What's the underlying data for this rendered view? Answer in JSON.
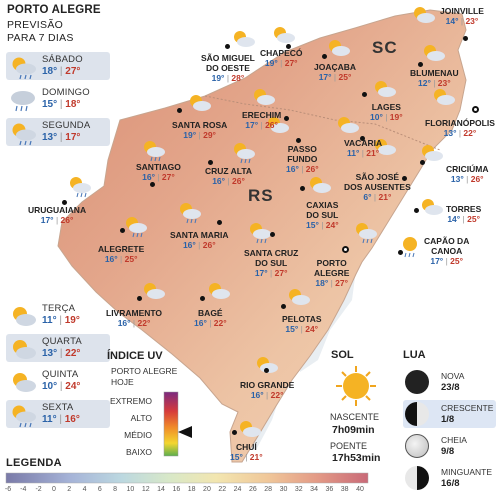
{
  "header": {
    "title": "PORTO ALEGRE",
    "line2": "PREVISÃO",
    "line3": "PARA 7 DIAS"
  },
  "forecast": [
    {
      "day": "SÁBADO",
      "min": "18°",
      "max": "27°",
      "icon": "sun-cloud-rain-icon"
    },
    {
      "day": "DOMINGO",
      "min": "15°",
      "max": "18°",
      "icon": "cloud-rain-icon"
    },
    {
      "day": "SEGUNDA",
      "min": "13°",
      "max": "17°",
      "icon": "sun-cloud-rain-icon"
    },
    {
      "day": "TERÇA",
      "min": "11°",
      "max": "19°",
      "icon": "sun-cloud-icon"
    },
    {
      "day": "QUARTA",
      "min": "13°",
      "max": "22°",
      "icon": "sun-cloud-icon"
    },
    {
      "day": "QUINTA",
      "min": "10°",
      "max": "24°",
      "icon": "sun-cloud-icon"
    },
    {
      "day": "SEXTA",
      "min": "11°",
      "max": "16°",
      "icon": "sun-cloud-rain-icon"
    }
  ],
  "states": {
    "sc": "SC",
    "rs": "RS"
  },
  "cities": {
    "joinville": {
      "name": "JOINVILLE",
      "min": "14°",
      "max": "23°"
    },
    "sao_miguel": {
      "name1": "SÃO MIGUEL",
      "name2": "DO OESTE",
      "min": "19°",
      "max": "28°"
    },
    "chapeco": {
      "name": "CHAPECÓ",
      "min": "19°",
      "max": "27°"
    },
    "joacaba": {
      "name": "JOAÇABA",
      "min": "17°",
      "max": "25°"
    },
    "blumenau": {
      "name": "BLUMENAU",
      "min": "12°",
      "max": "23°"
    },
    "lages": {
      "name": "LAGES",
      "min": "10°",
      "max": "19°"
    },
    "florianopolis": {
      "name": "FLORIANÓPOLIS",
      "min": "13°",
      "max": "22°"
    },
    "santa_rosa": {
      "name": "SANTA ROSA",
      "min": "19°",
      "max": "29°"
    },
    "erechim": {
      "name": "ERECHIM",
      "min": "17°",
      "max": "26°"
    },
    "vacaria": {
      "name": "VACARIA",
      "min": "11°",
      "max": "21°"
    },
    "criciuma": {
      "name": "CRICIÚMA",
      "min": "13°",
      "max": "26°"
    },
    "santiago": {
      "name": "SANTIAGO",
      "min": "16°",
      "max": "27°"
    },
    "cruz_alta": {
      "name": "CRUZ ALTA",
      "min": "16°",
      "max": "26°"
    },
    "passo_fundo": {
      "name1": "PASSO",
      "name2": "FUNDO",
      "min": "16°",
      "max": "26°"
    },
    "sao_jose": {
      "name1": "SÃO JOSÉ",
      "name2": "DOS AUSENTES",
      "min": "6°",
      "max": "21°"
    },
    "torres": {
      "name": "TORRES",
      "min": "14°",
      "max": "25°"
    },
    "uruguaiana": {
      "name": "URUGUAIANA",
      "min": "17°",
      "max": "26°"
    },
    "caxias": {
      "name1": "CAXIAS",
      "name2": "DO SUL",
      "min": "15°",
      "max": "24°"
    },
    "alegrete": {
      "name": "ALEGRETE",
      "min": "16°",
      "max": "25°"
    },
    "santa_maria": {
      "name": "SANTA MARIA",
      "min": "16°",
      "max": "26°"
    },
    "capao": {
      "name1": "CAPÃO DA",
      "name2": "CANOA",
      "min": "17°",
      "max": "25°"
    },
    "santa_cruz": {
      "name1": "SANTA CRUZ",
      "name2": "DO SUL",
      "min": "17°",
      "max": "27°"
    },
    "porto_alegre": {
      "name1": "PORTO",
      "name2": "ALEGRE",
      "min": "18°",
      "max": "27°"
    },
    "livramento": {
      "name": "LIVRAMENTO",
      "min": "16°",
      "max": "22°"
    },
    "bage": {
      "name": "BAGÉ",
      "min": "16°",
      "max": "22°"
    },
    "pelotas": {
      "name": "PELOTAS",
      "min": "15°",
      "max": "24°"
    },
    "rio_grande": {
      "name": "RIO GRANDE",
      "min": "16°",
      "max": "22°"
    },
    "chui": {
      "name": "CHUÍ",
      "min": "15°",
      "max": "21°"
    }
  },
  "uv": {
    "title": "ÍNDICE UV",
    "sub1": "PORTO ALEGRE",
    "sub2": "HOJE",
    "levels": [
      "EXTREMO",
      "ALTO",
      "MÉDIO",
      "BAIXO"
    ],
    "current": "MÉDIO"
  },
  "sol": {
    "title": "SOL",
    "sunrise_label": "NASCENTE",
    "sunrise": "7h09min",
    "sunset_label": "POENTE",
    "sunset": "17h53min"
  },
  "lua": {
    "title": "LUA",
    "phases": [
      {
        "name": "NOVA",
        "date": "23/8",
        "icon": "new-moon-icon"
      },
      {
        "name": "CRESCENTE",
        "date": "1/8",
        "icon": "first-quarter-moon-icon",
        "highlight": true
      },
      {
        "name": "CHEIA",
        "date": "9/8",
        "icon": "full-moon-icon"
      },
      {
        "name": "MINGUANTE",
        "date": "16/8",
        "icon": "last-quarter-moon-icon"
      }
    ]
  },
  "legend": {
    "title": "LEGENDA",
    "ticks": [
      "-6",
      "-4",
      "-2",
      "0",
      "2",
      "4",
      "6",
      "8",
      "10",
      "12",
      "14",
      "16",
      "18",
      "20",
      "22",
      "24",
      "26",
      "28",
      "30",
      "32",
      "34",
      "36",
      "38",
      "40"
    ]
  },
  "colors": {
    "temp_min": "#2a62a8",
    "temp_max": "#c0392b",
    "map_warm": "#e0a188",
    "map_mild": "#efc9a8",
    "highlight_bg": "#dde3ec"
  }
}
